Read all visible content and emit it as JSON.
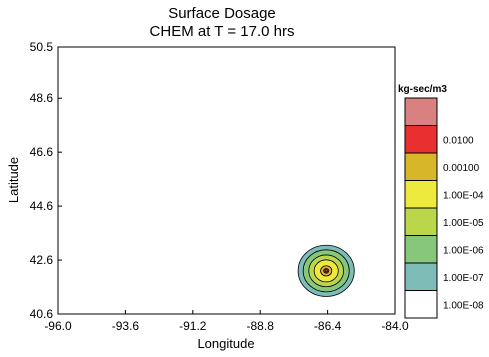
{
  "chart_data": {
    "type": "contour",
    "title": "Surface Dosage",
    "subtitle": "CHEM at T = 17.0 hrs",
    "xlabel": "Longitude",
    "ylabel": "Latitude",
    "xlim": [
      -96.0,
      -84.0
    ],
    "ylim": [
      40.6,
      50.5
    ],
    "x_ticks": [
      "-96.0",
      "-93.6",
      "-91.2",
      "-88.8",
      "-86.4",
      "-84.0"
    ],
    "y_ticks": [
      "40.6",
      "42.6",
      "44.6",
      "46.6",
      "48.6",
      "50.5"
    ],
    "x_tick_values": [
      -96.0,
      -93.6,
      -91.2,
      -88.8,
      -86.4,
      -84.0
    ],
    "y_tick_values": [
      40.6,
      42.6,
      44.6,
      46.6,
      48.6,
      50.5
    ],
    "grid": false,
    "plume": {
      "center_lon": -86.45,
      "center_lat": 42.2,
      "levels": [
        {
          "threshold": "1.00E-08",
          "color": "#7dbcb7",
          "radius_lon": 1.0,
          "radius_lat": 0.95
        },
        {
          "threshold": "1.00E-07",
          "color": "#86c77c",
          "radius_lon": 0.82,
          "radius_lat": 0.78
        },
        {
          "threshold": "1.00E-06",
          "color": "#bcd64c",
          "radius_lon": 0.62,
          "radius_lat": 0.59
        },
        {
          "threshold": "1.00E-05",
          "color": "#eeea3d",
          "radius_lon": 0.43,
          "radius_lat": 0.41
        },
        {
          "threshold": "1.00E-04",
          "color": "#d8b62a",
          "radius_lon": 0.2,
          "radius_lat": 0.19
        },
        {
          "threshold": "0.00100",
          "color": "#e83030",
          "radius_lon": 0.09,
          "radius_lat": 0.085
        },
        {
          "threshold": "0.0100",
          "color": "#d98080",
          "radius_lon": 0.04,
          "radius_lat": 0.04
        }
      ]
    },
    "legend": {
      "title": "kg-sec/m3",
      "placement": "right",
      "entries": [
        {
          "label": "",
          "color": "#d98080"
        },
        {
          "label": "0.0100",
          "color": "#e83030"
        },
        {
          "label": "0.00100",
          "color": "#d8b62a"
        },
        {
          "label": "1.00E-04",
          "color": "#eeea3d"
        },
        {
          "label": "1.00E-05",
          "color": "#bcd64c"
        },
        {
          "label": "1.00E-06",
          "color": "#86c77c"
        },
        {
          "label": "1.00E-07",
          "color": "#7dbcb7"
        },
        {
          "label": "1.00E-08",
          "color": "#ffffff"
        }
      ]
    }
  }
}
